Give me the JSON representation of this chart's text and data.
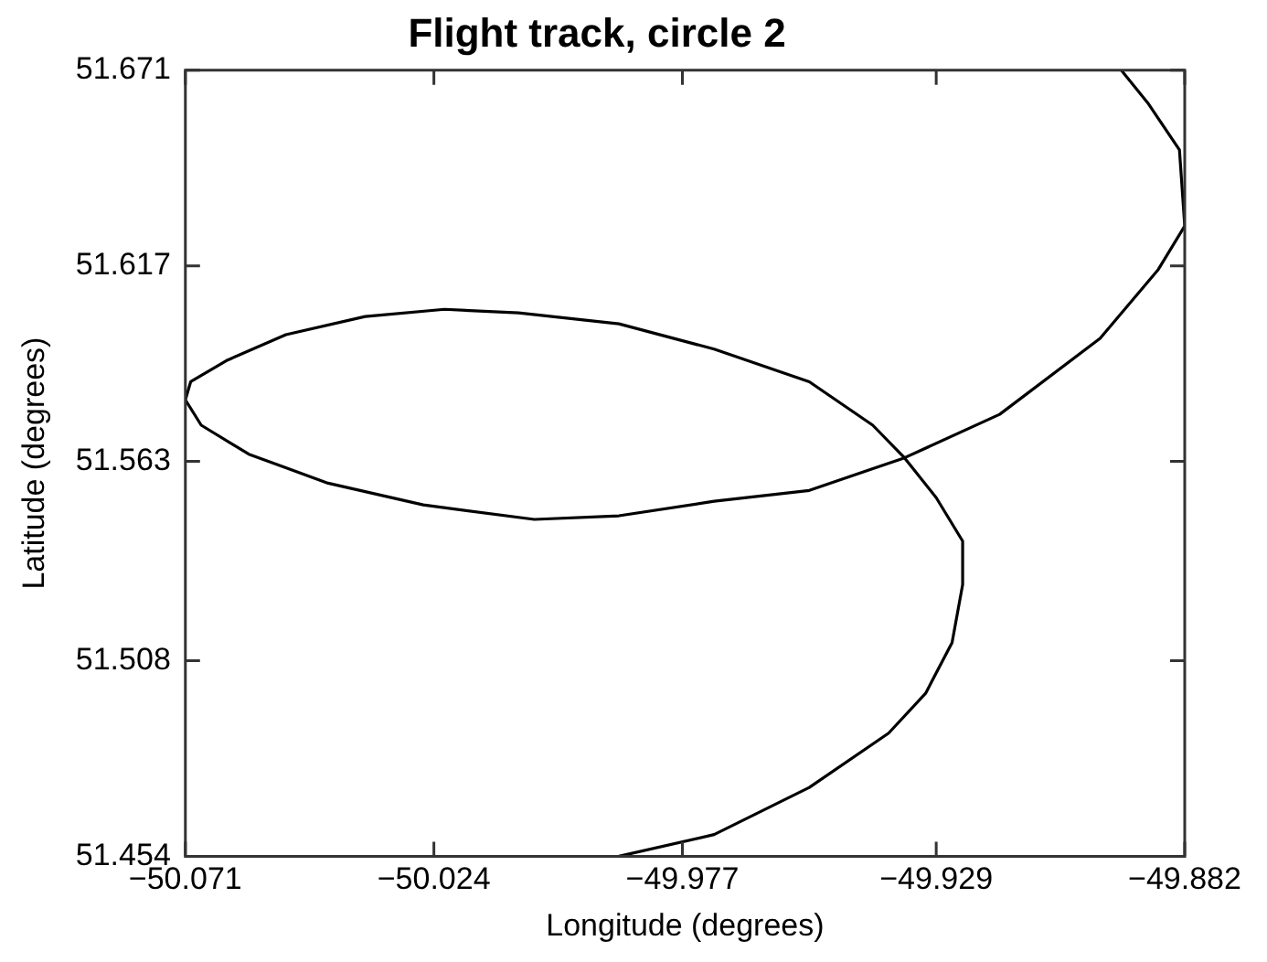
{
  "chart_data": {
    "type": "line",
    "title": "Flight track, circle 2",
    "xlabel": "Longitude (degrees)",
    "ylabel": "Latitude (degrees)",
    "xlim": [
      -50.071,
      -49.882
    ],
    "ylim": [
      51.454,
      51.671
    ],
    "xticks": [
      -50.071,
      -50.024,
      -49.977,
      -49.929,
      -49.882
    ],
    "yticks": [
      51.454,
      51.508,
      51.563,
      51.617,
      51.671
    ],
    "grid": false,
    "legend": false,
    "marker": "none",
    "line_style": "solid",
    "series": [
      {
        "color": "#000000",
        "x": [
          -49.989,
          -49.971,
          -49.953,
          -49.938,
          -49.931,
          -49.926,
          -49.924,
          -49.924,
          -49.929,
          -49.935,
          -49.941,
          -49.953,
          -49.971,
          -49.989,
          -50.008,
          -50.022,
          -50.037,
          -50.052,
          -50.063,
          -50.07,
          -50.071,
          -50.068,
          -50.059,
          -50.044,
          -50.026,
          -50.005,
          -49.989,
          -49.971,
          -49.953,
          -49.935,
          -49.917,
          -49.898,
          -49.887,
          -49.882,
          -49.883,
          -49.889,
          -49.894
        ],
        "values": [
          51.454,
          51.46,
          51.473,
          51.488,
          51.499,
          51.513,
          51.529,
          51.541,
          51.553,
          51.564,
          51.573,
          51.585,
          51.594,
          51.601,
          51.604,
          51.605,
          51.603,
          51.598,
          51.591,
          51.585,
          51.58,
          51.573,
          51.565,
          51.557,
          51.551,
          51.547,
          51.548,
          51.552,
          51.555,
          51.564,
          51.576,
          51.597,
          51.616,
          51.628,
          51.649,
          51.662,
          51.671
        ]
      }
    ]
  }
}
